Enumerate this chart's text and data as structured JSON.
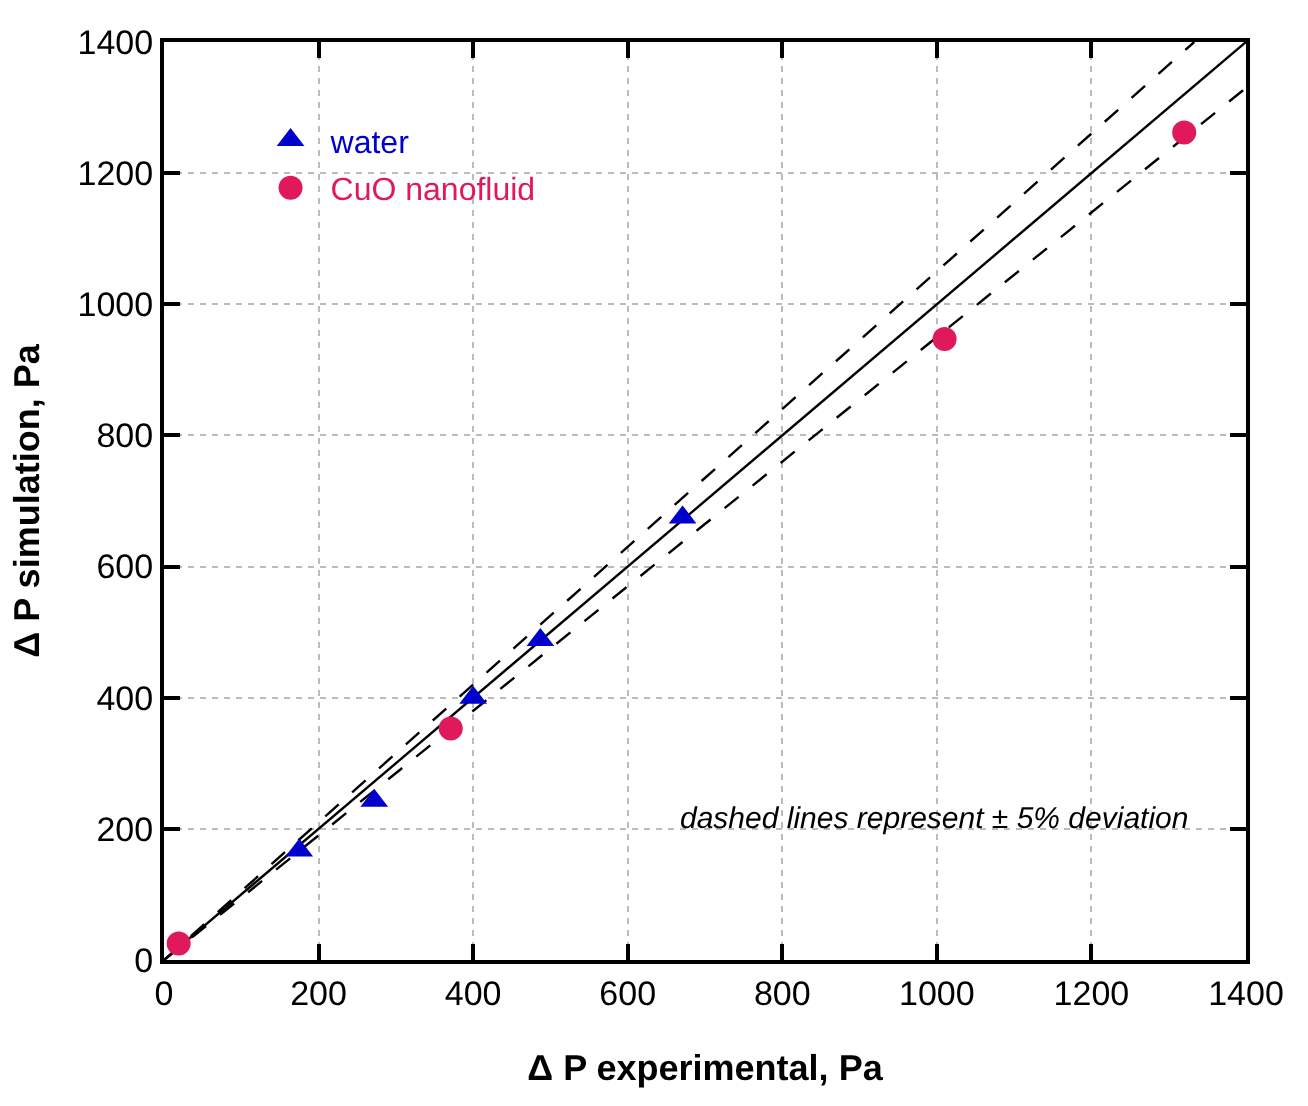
{
  "chart_data": {
    "type": "scatter",
    "xlabel": "Δ P experimental, Pa",
    "ylabel": "Δ P simulation, Pa",
    "xlim": [
      0,
      1400
    ],
    "xticks": [
      0,
      200,
      400,
      600,
      800,
      1000,
      1200,
      1400
    ],
    "ylim": [
      0,
      1400
    ],
    "yticks": [
      0,
      200,
      400,
      600,
      800,
      1000,
      1200,
      1400
    ],
    "grid": true,
    "legend": "top left",
    "annotations": [
      "dashed lines represent ± 5% deviation"
    ],
    "series": [
      {
        "type": "line",
        "color": "#000000",
        "line_style": "solid",
        "marker": "none",
        "x": [
          0,
          1400
        ],
        "values": [
          0,
          1400
        ]
      },
      {
        "type": "line",
        "color": "#000000",
        "line_style": "dashed",
        "marker": "none",
        "x": [
          0,
          1333
        ],
        "values": [
          0,
          1400
        ]
      },
      {
        "type": "line",
        "color": "#000000",
        "line_style": "dashed",
        "marker": "none",
        "x": [
          0,
          1400
        ],
        "values": [
          0,
          1330
        ]
      },
      {
        "name": "water",
        "color": "#0000cc",
        "marker": "triangle",
        "x": [
          175,
          272,
          400,
          487,
          671
        ],
        "values": [
          167,
          243,
          400,
          488,
          675
        ]
      },
      {
        "name": "CuO nanofluid",
        "color": "#e0195a",
        "marker": "circle",
        "x": [
          19,
          371,
          1010,
          1320
        ],
        "values": [
          25,
          353,
          947,
          1262
        ]
      }
    ]
  }
}
